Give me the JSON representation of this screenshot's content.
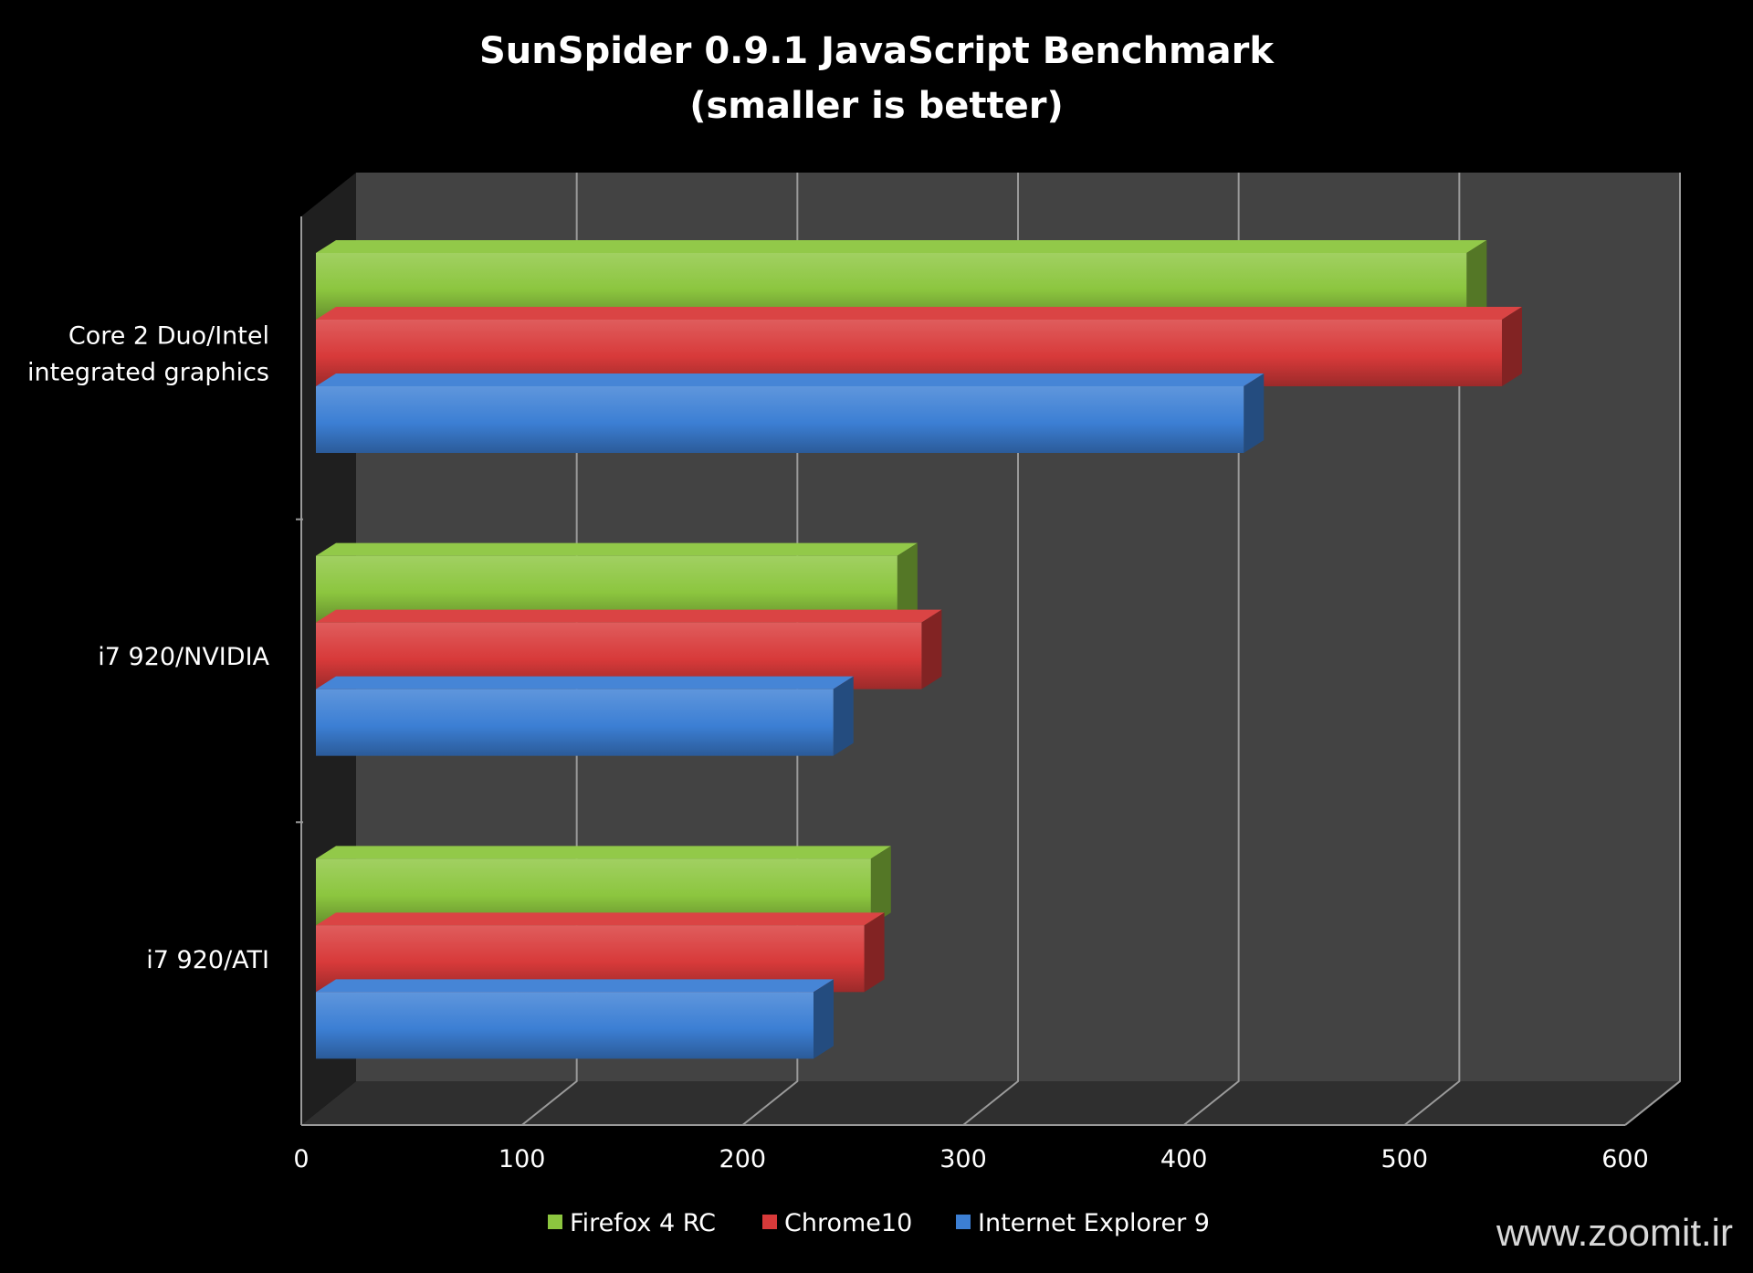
{
  "chart_data": {
    "type": "bar",
    "orientation": "horizontal",
    "title": "SunSpider 0.9.1 JavaScript Benchmark",
    "subtitle": "(smaller is better)",
    "categories": [
      "Core 2 Duo/Intel integrated graphics",
      "i7 920/NVIDIA",
      "i7 920/ATI"
    ],
    "category_lines": [
      [
        "Core 2 Duo/Intel",
        "integrated graphics"
      ],
      [
        "i7 920/NVIDIA"
      ],
      [
        "i7 920/ATI"
      ]
    ],
    "series": [
      {
        "name": "Firefox 4 RC",
        "values": [
          524,
          266,
          254
        ],
        "color": "#8cc63f"
      },
      {
        "name": "Chrome10",
        "values": [
          540,
          277,
          251
        ],
        "color": "#d83a3a"
      },
      {
        "name": "Internet Explorer 9",
        "values": [
          423,
          237,
          228
        ],
        "color": "#3c7fd4"
      }
    ],
    "xlim": [
      0,
      600
    ],
    "xticks": [
      0,
      100,
      200,
      300,
      400,
      500,
      600
    ],
    "grid": true,
    "legend_position": "bottom",
    "style": "3d"
  },
  "watermark": "www.zoomit.ir",
  "colors": {
    "background": "#000000",
    "plot_back_wall": "#434343",
    "plot_floor": "#2f2f2f",
    "plot_side_wall": "#1f1f1f",
    "gridline": "#9a9a9a"
  }
}
